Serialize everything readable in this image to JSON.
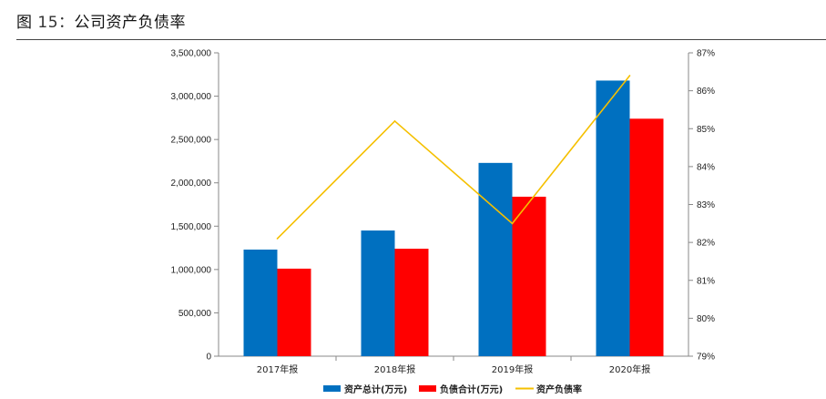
{
  "figure": {
    "label": "图",
    "number": "15：",
    "caption": "公司资产负债率"
  },
  "colors": {
    "assets": "#0070C0",
    "liabilities": "#FF0000",
    "ratio": "#F5C000"
  },
  "chart_data": {
    "type": "bar",
    "categories": [
      "2017年报",
      "2018年报",
      "2019年报",
      "2020年报"
    ],
    "series": [
      {
        "name": "资产总计(万元)",
        "type": "bar",
        "axis": "left",
        "values": [
          1230000,
          1450000,
          2230000,
          3180000
        ]
      },
      {
        "name": "负债合计(万元)",
        "type": "bar",
        "axis": "left",
        "values": [
          1010000,
          1240000,
          1840000,
          2740000
        ]
      },
      {
        "name": "资产负债率",
        "type": "line",
        "axis": "right",
        "values": [
          82.1,
          85.2,
          82.5,
          86.4
        ]
      }
    ],
    "y_left": {
      "min": 0,
      "max": 3500000,
      "step": 500000,
      "tick_labels": [
        "0",
        "500,000",
        "1,000,000",
        "1,500,000",
        "2,000,000",
        "2,500,000",
        "3,000,000",
        "3,500,000"
      ]
    },
    "y_right": {
      "min": 79,
      "max": 87,
      "step": 1,
      "tick_labels": [
        "79%",
        "80%",
        "81%",
        "82%",
        "83%",
        "84%",
        "85%",
        "86%",
        "87%"
      ]
    },
    "legend_position": "bottom",
    "grid": false
  }
}
